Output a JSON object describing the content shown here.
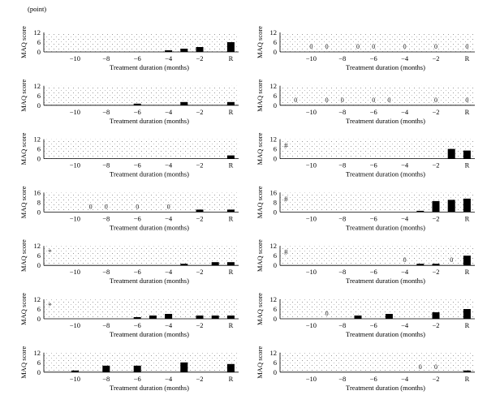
{
  "figure": {
    "unit_label": "(point)"
  },
  "chart_data": [
    {
      "type": "bar",
      "ylabel": "MAQ score",
      "xlabel": "Treatment duration (months)",
      "x_tick_labels": [
        "-10",
        "-8",
        "-6",
        "-4",
        "-2",
        "R"
      ],
      "ylim": [
        0,
        12
      ],
      "y_ticks": [
        0,
        6,
        12
      ],
      "x": [
        -4,
        -3,
        -2,
        0
      ],
      "values": [
        1,
        2,
        3,
        6
      ],
      "zero_labels": [],
      "marker": ""
    },
    {
      "type": "bar",
      "ylabel": "MAQ score",
      "xlabel": "Treatment duration (months)",
      "x_tick_labels": [
        "-10",
        "-8",
        "-6",
        "-4",
        "-2",
        "R"
      ],
      "ylim": [
        0,
        12
      ],
      "y_ticks": [
        0,
        6,
        12
      ],
      "x": [],
      "values": [],
      "zero_labels": [
        {
          "x": -10,
          "text": "0"
        },
        {
          "x": -9,
          "text": "0"
        },
        {
          "x": -7,
          "text": "0"
        },
        {
          "x": -6,
          "text": "0"
        },
        {
          "x": -4,
          "text": "0"
        },
        {
          "x": -2,
          "text": "0"
        },
        {
          "x": 0,
          "text": "0"
        }
      ],
      "marker": ""
    },
    {
      "type": "bar",
      "ylabel": "MAQ score",
      "xlabel": "Treatment duration (months)",
      "x_tick_labels": [
        "-10",
        "-8",
        "-6",
        "-4",
        "-2",
        "R"
      ],
      "ylim": [
        0,
        12
      ],
      "y_ticks": [
        0,
        6,
        12
      ],
      "x": [
        -6,
        -3,
        0
      ],
      "values": [
        1,
        2,
        2
      ],
      "zero_labels": [],
      "marker": ""
    },
    {
      "type": "bar",
      "ylabel": "MAQ score",
      "xlabel": "Treatment duration (months)",
      "x_tick_labels": [
        "-10",
        "-8",
        "-6",
        "-4",
        "-2",
        "R"
      ],
      "ylim": [
        0,
        12
      ],
      "y_ticks": [
        0,
        6,
        12
      ],
      "x": [],
      "values": [],
      "zero_labels": [
        {
          "x": -11,
          "text": "0"
        },
        {
          "x": -9,
          "text": "0"
        },
        {
          "x": -8,
          "text": "0"
        },
        {
          "x": -6,
          "text": "0"
        },
        {
          "x": -5,
          "text": "0"
        },
        {
          "x": -2,
          "text": "0"
        },
        {
          "x": 0,
          "text": "0"
        }
      ],
      "marker": ""
    },
    {
      "type": "bar",
      "ylabel": "MAQ score",
      "xlabel": "Treatment duration (months)",
      "x_tick_labels": [
        "-10",
        "-8",
        "-6",
        "-4",
        "-2",
        "R"
      ],
      "ylim": [
        0,
        12
      ],
      "y_ticks": [
        0,
        6,
        12
      ],
      "x": [
        0
      ],
      "values": [
        2
      ],
      "zero_labels": [],
      "marker": ""
    },
    {
      "type": "bar",
      "ylabel": "MAQ score",
      "xlabel": "Treatment duration (months)",
      "x_tick_labels": [
        "-10",
        "-8",
        "-6",
        "-4",
        "-2",
        "R"
      ],
      "ylim": [
        0,
        12
      ],
      "y_ticks": [
        0,
        6,
        12
      ],
      "x": [
        -1,
        0
      ],
      "values": [
        6,
        5
      ],
      "zero_labels": [],
      "marker": "#"
    },
    {
      "type": "bar",
      "ylabel": "MAQ score",
      "xlabel": "Treatment duration (months)",
      "x_tick_labels": [
        "-10",
        "-8",
        "-6",
        "-4",
        "-2",
        "R"
      ],
      "ylim": [
        0,
        16
      ],
      "y_ticks": [
        0,
        8,
        16
      ],
      "x": [
        -2,
        0
      ],
      "values": [
        2,
        2
      ],
      "zero_labels": [
        {
          "x": -9,
          "text": "0"
        },
        {
          "x": -8,
          "text": "0"
        },
        {
          "x": -6,
          "text": "0"
        },
        {
          "x": -4,
          "text": "0"
        }
      ],
      "marker": ""
    },
    {
      "type": "bar",
      "ylabel": "MAQ score",
      "xlabel": "Treatment duration (months)",
      "x_tick_labels": [
        "-10",
        "-8",
        "-6",
        "-4",
        "-2",
        "R"
      ],
      "ylim": [
        0,
        16
      ],
      "y_ticks": [
        0,
        8,
        16
      ],
      "x": [
        -3,
        -2,
        -1,
        0
      ],
      "values": [
        1,
        9,
        10,
        11
      ],
      "zero_labels": [],
      "marker": "#"
    },
    {
      "type": "bar",
      "ylabel": "MAQ score",
      "xlabel": "Treatment duration (months)",
      "x_tick_labels": [
        "-10",
        "-8",
        "-6",
        "-4",
        "-2",
        "R"
      ],
      "ylim": [
        0,
        12
      ],
      "y_ticks": [
        0,
        6,
        12
      ],
      "x": [
        -3,
        -1,
        0
      ],
      "values": [
        1,
        2,
        2
      ],
      "zero_labels": [],
      "marker": "*"
    },
    {
      "type": "bar",
      "ylabel": "MAQ score",
      "xlabel": "Treatment duration (months)",
      "x_tick_labels": [
        "-10",
        "-8",
        "-6",
        "-4",
        "-2",
        "R"
      ],
      "ylim": [
        0,
        12
      ],
      "y_ticks": [
        0,
        6,
        12
      ],
      "x": [
        -3,
        -2,
        0
      ],
      "values": [
        1,
        1,
        6
      ],
      "zero_labels": [
        {
          "x": -4,
          "text": "0"
        },
        {
          "x": -1,
          "text": "0"
        }
      ],
      "marker": "#"
    },
    {
      "type": "bar",
      "ylabel": "MAQ score",
      "xlabel": "Treatment duration (months)",
      "x_tick_labels": [
        "-10",
        "-8",
        "-6",
        "-4",
        "-2",
        "R"
      ],
      "ylim": [
        0,
        12
      ],
      "y_ticks": [
        0,
        6,
        12
      ],
      "x": [
        -6,
        -5,
        -4,
        -2,
        -1,
        0
      ],
      "values": [
        1,
        2,
        3,
        2,
        2,
        2
      ],
      "zero_labels": [],
      "marker": "*"
    },
    {
      "type": "bar",
      "ylabel": "MAQ score",
      "xlabel": "Treatment duration (months)",
      "x_tick_labels": [
        "-10",
        "-8",
        "-6",
        "-4",
        "-2",
        "R"
      ],
      "ylim": [
        0,
        12
      ],
      "y_ticks": [
        0,
        6,
        12
      ],
      "x": [
        -7,
        -5,
        -2,
        0
      ],
      "values": [
        2,
        3,
        4,
        6
      ],
      "zero_labels": [
        {
          "x": -9,
          "text": "0"
        }
      ],
      "marker": ""
    },
    {
      "type": "bar",
      "ylabel": "MAQ score",
      "xlabel": "Treatment duration (months)",
      "x_tick_labels": [
        "-10",
        "-8",
        "-6",
        "-4",
        "-2",
        "R"
      ],
      "ylim": [
        0,
        12
      ],
      "y_ticks": [
        0,
        6,
        12
      ],
      "x": [
        -10,
        -8,
        -6,
        -3,
        0
      ],
      "values": [
        1,
        4,
        4,
        6,
        5
      ],
      "zero_labels": [],
      "marker": ""
    },
    {
      "type": "bar",
      "ylabel": "MAQ score",
      "xlabel": "Treatment duration (months)",
      "x_tick_labels": [
        "-10",
        "-8",
        "-6",
        "-4",
        "-2",
        "R"
      ],
      "ylim": [
        0,
        12
      ],
      "y_ticks": [
        0,
        6,
        12
      ],
      "x": [
        0
      ],
      "values": [
        1
      ],
      "zero_labels": [
        {
          "x": -3,
          "text": "0"
        },
        {
          "x": -2,
          "text": "0"
        }
      ],
      "marker": ""
    }
  ]
}
